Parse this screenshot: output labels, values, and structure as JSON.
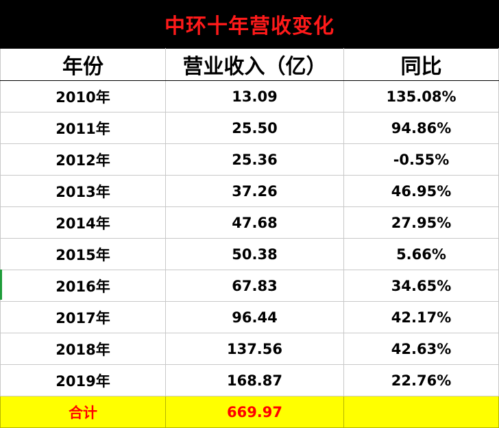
{
  "title": "中环十年营收变化",
  "headers": {
    "year": "年份",
    "revenue": "营业收入（亿）",
    "yoy": "同比"
  },
  "rows": [
    {
      "year": "2010年",
      "revenue": "13.09",
      "yoy": "135.08%"
    },
    {
      "year": "2011年",
      "revenue": "25.50",
      "yoy": "94.86%"
    },
    {
      "year": "2012年",
      "revenue": "25.36",
      "yoy": "-0.55%"
    },
    {
      "year": "2013年",
      "revenue": "37.26",
      "yoy": "46.95%"
    },
    {
      "year": "2014年",
      "revenue": "47.68",
      "yoy": "27.95%"
    },
    {
      "year": "2015年",
      "revenue": "50.38",
      "yoy": "5.66%"
    },
    {
      "year": "2016年",
      "revenue": "67.83",
      "yoy": "34.65%"
    },
    {
      "year": "2017年",
      "revenue": "96.44",
      "yoy": "42.17%"
    },
    {
      "year": "2018年",
      "revenue": "137.56",
      "yoy": "42.63%"
    },
    {
      "year": "2019年",
      "revenue": "168.87",
      "yoy": "22.76%"
    }
  ],
  "total": {
    "label": "合计",
    "revenue": "669.97",
    "yoy": ""
  },
  "colors": {
    "title_bg": "#000000",
    "title_text": "#ff1a1a",
    "total_bg": "#ffff00",
    "total_text": "#ff0000"
  }
}
